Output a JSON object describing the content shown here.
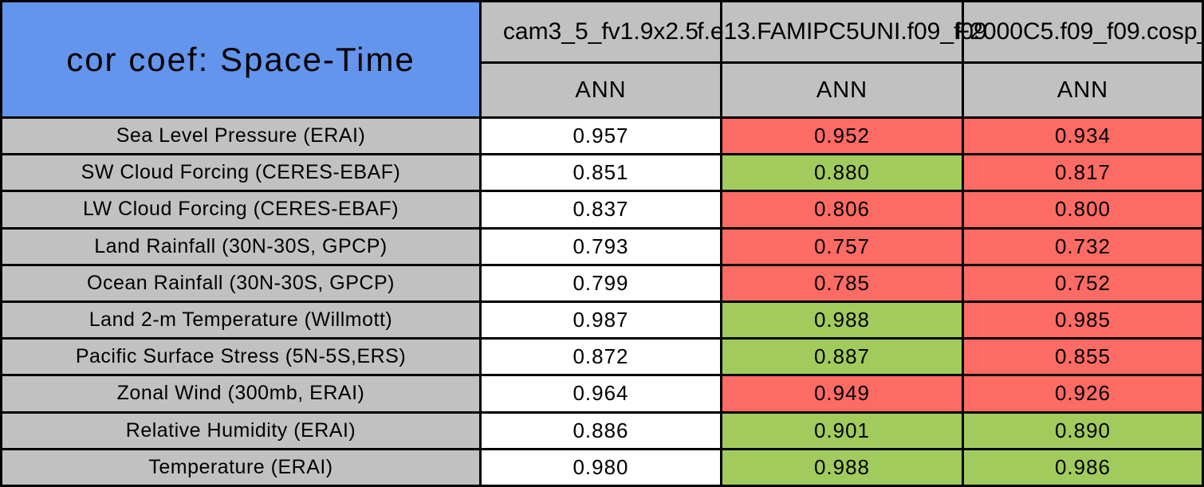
{
  "palette": {
    "blue": "#6495EC",
    "grey": "#C1C1C1",
    "red": "#FC6B64",
    "green": "#A2CB5E",
    "white": "#FFFFFF",
    "border": "#000000",
    "text": "#000000"
  },
  "chart_data": {
    "type": "table",
    "title": "cor coef: Space-Time",
    "columns": [
      {
        "model": "cam3_5_fv1.9x2.5",
        "season": "ANN"
      },
      {
        "model": "f.e13.FAMIPC5UNI.f09_f09",
        "season": "ANN"
      },
      {
        "model": "F2000C5.f09_f09.cosp_",
        "season": "ANN"
      }
    ],
    "rows": [
      {
        "label": "Sea Level Pressure (ERAI)",
        "values": [
          "0.957",
          "0.952",
          "0.934"
        ],
        "colors": [
          "white",
          "red",
          "red"
        ]
      },
      {
        "label": "SW Cloud Forcing (CERES-EBAF)",
        "values": [
          "0.851",
          "0.880",
          "0.817"
        ],
        "colors": [
          "white",
          "green",
          "red"
        ]
      },
      {
        "label": "LW Cloud Forcing (CERES-EBAF)",
        "values": [
          "0.837",
          "0.806",
          "0.800"
        ],
        "colors": [
          "white",
          "red",
          "red"
        ]
      },
      {
        "label": "Land Rainfall (30N-30S, GPCP)",
        "values": [
          "0.793",
          "0.757",
          "0.732"
        ],
        "colors": [
          "white",
          "red",
          "red"
        ]
      },
      {
        "label": "Ocean Rainfall (30N-30S, GPCP)",
        "values": [
          "0.799",
          "0.785",
          "0.752"
        ],
        "colors": [
          "white",
          "red",
          "red"
        ]
      },
      {
        "label": "Land 2-m Temperature (Willmott)",
        "values": [
          "0.987",
          "0.988",
          "0.985"
        ],
        "colors": [
          "white",
          "green",
          "red"
        ]
      },
      {
        "label": "Pacific Surface Stress (5N-5S,ERS)",
        "values": [
          "0.872",
          "0.887",
          "0.855"
        ],
        "colors": [
          "white",
          "green",
          "red"
        ]
      },
      {
        "label": "Zonal Wind (300mb, ERAI)",
        "values": [
          "0.964",
          "0.949",
          "0.926"
        ],
        "colors": [
          "white",
          "red",
          "red"
        ]
      },
      {
        "label": "Relative Humidity (ERAI)",
        "values": [
          "0.886",
          "0.901",
          "0.890"
        ],
        "colors": [
          "white",
          "green",
          "green"
        ]
      },
      {
        "label": "Temperature (ERAI)",
        "values": [
          "0.980",
          "0.988",
          "0.986"
        ],
        "colors": [
          "white",
          "green",
          "green"
        ]
      }
    ]
  }
}
